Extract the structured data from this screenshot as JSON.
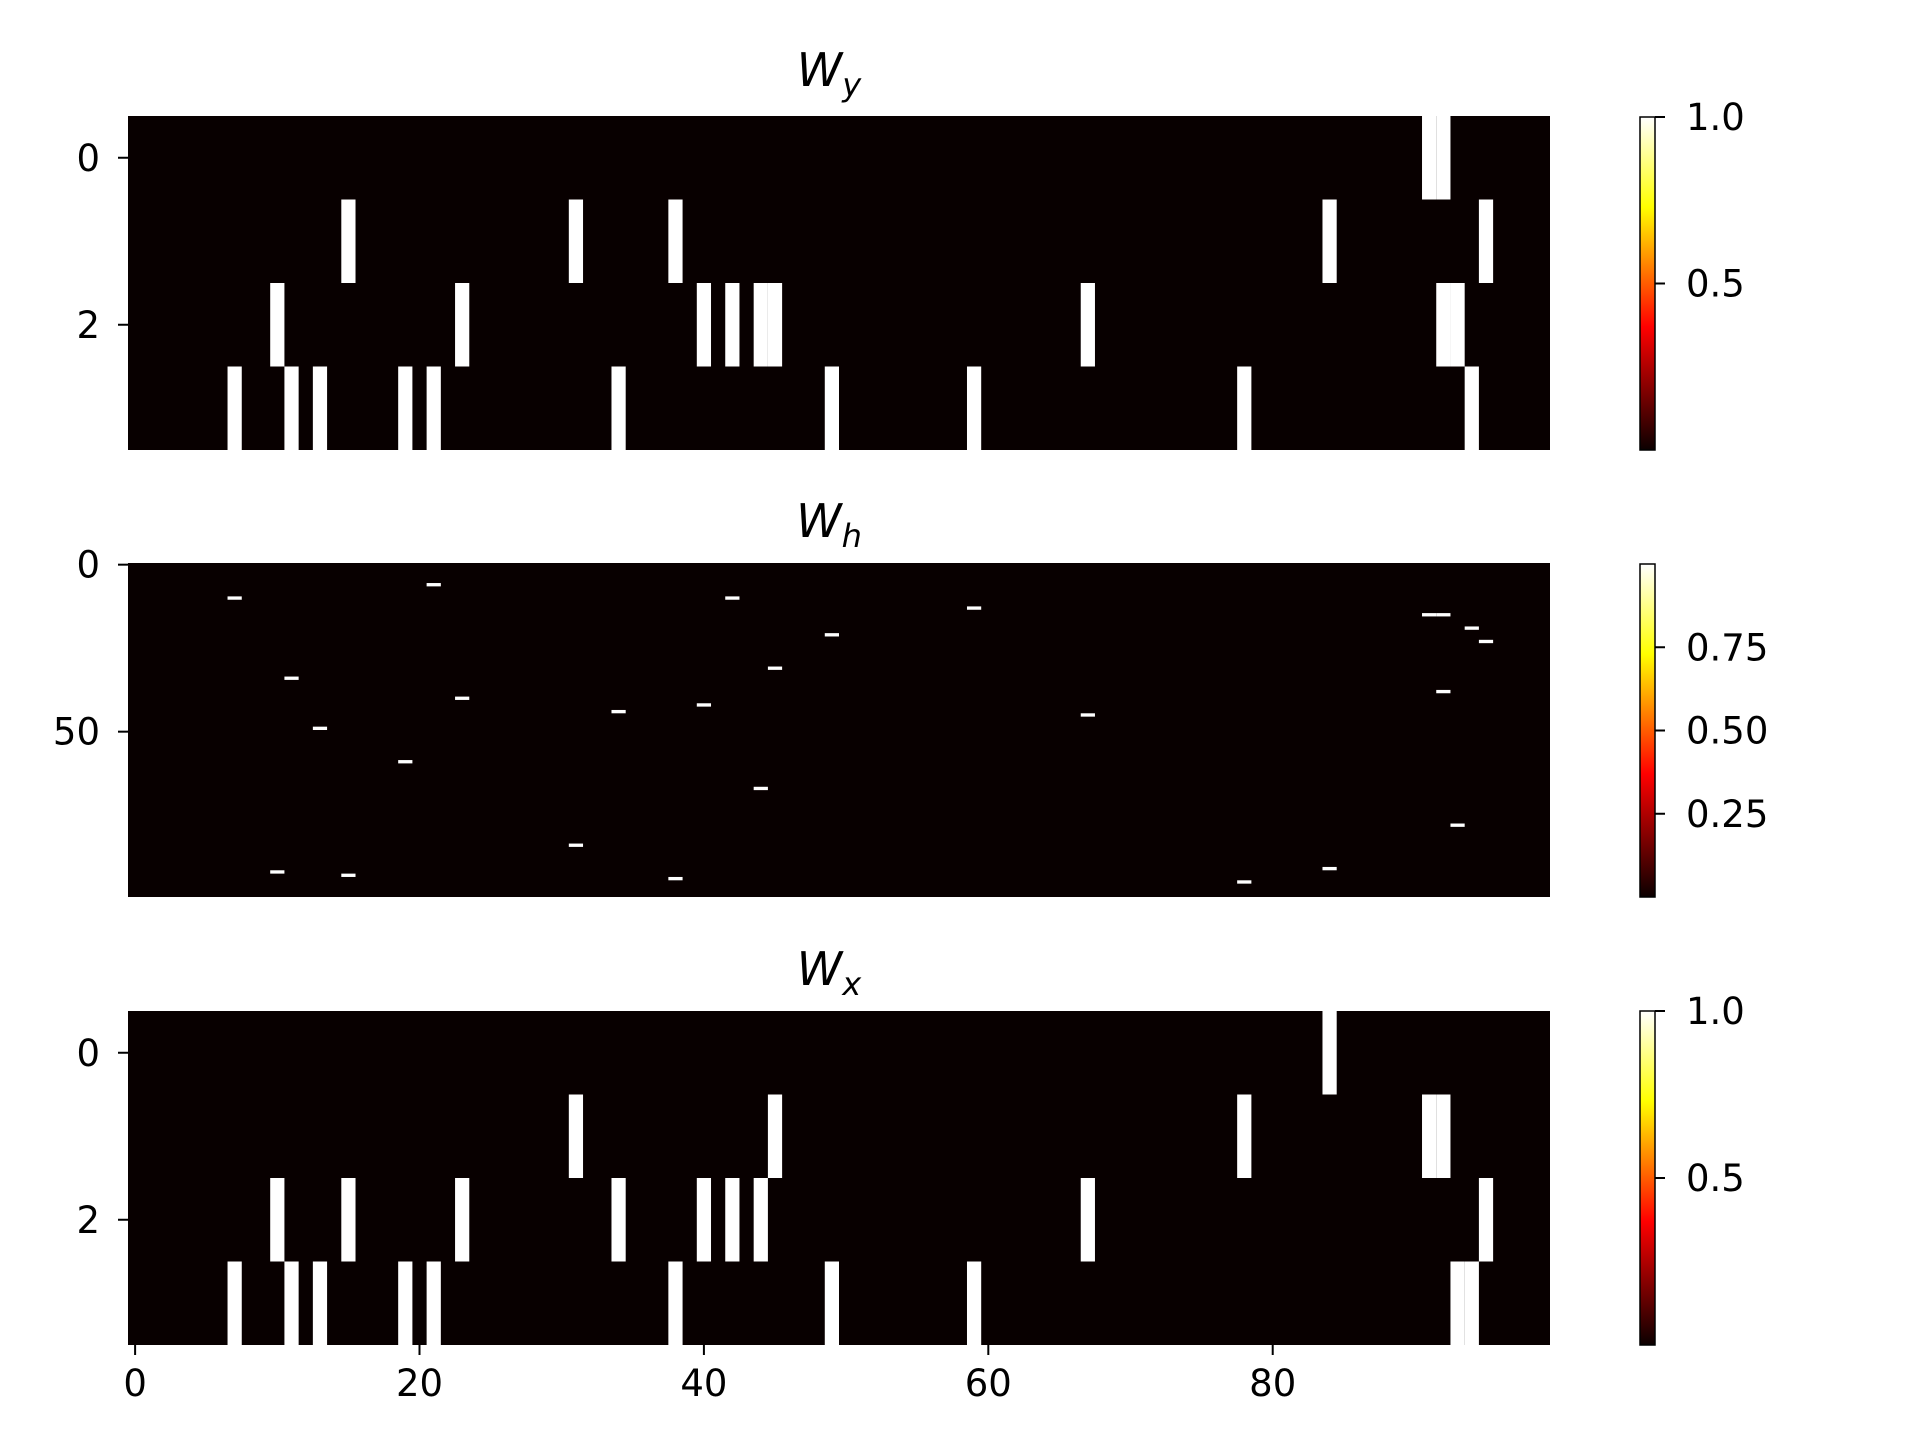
{
  "chart_data": [
    {
      "type": "heatmap",
      "title": "W",
      "title_sub": "y",
      "rows": 4,
      "cols": 100,
      "colormap": "hot",
      "ylim": [
        3.5,
        -0.5
      ],
      "xlim": [
        -0.5,
        99.5
      ],
      "yticks": [
        0,
        2
      ],
      "xticks": [],
      "colorbar_ticks": [
        "0.5",
        "1.0"
      ],
      "colorbar_range": [
        0.0,
        1.0
      ],
      "nonzero": [
        {
          "row": 0,
          "col": 91,
          "value": 1.0
        },
        {
          "row": 0,
          "col": 92,
          "value": 1.0
        },
        {
          "row": 1,
          "col": 15,
          "value": 1.0
        },
        {
          "row": 1,
          "col": 31,
          "value": 1.0
        },
        {
          "row": 1,
          "col": 38,
          "value": 1.0
        },
        {
          "row": 1,
          "col": 84,
          "value": 1.0
        },
        {
          "row": 1,
          "col": 95,
          "value": 1.0
        },
        {
          "row": 2,
          "col": 10,
          "value": 1.0
        },
        {
          "row": 2,
          "col": 23,
          "value": 1.0
        },
        {
          "row": 2,
          "col": 40,
          "value": 1.0
        },
        {
          "row": 2,
          "col": 42,
          "value": 1.0
        },
        {
          "row": 2,
          "col": 44,
          "value": 1.0
        },
        {
          "row": 2,
          "col": 45,
          "value": 1.0
        },
        {
          "row": 2,
          "col": 67,
          "value": 1.0
        },
        {
          "row": 2,
          "col": 92,
          "value": 1.0
        },
        {
          "row": 2,
          "col": 93,
          "value": 1.0
        },
        {
          "row": 3,
          "col": 7,
          "value": 1.0
        },
        {
          "row": 3,
          "col": 11,
          "value": 1.0
        },
        {
          "row": 3,
          "col": 13,
          "value": 1.0
        },
        {
          "row": 3,
          "col": 19,
          "value": 1.0
        },
        {
          "row": 3,
          "col": 21,
          "value": 1.0
        },
        {
          "row": 3,
          "col": 34,
          "value": 1.0
        },
        {
          "row": 3,
          "col": 49,
          "value": 1.0
        },
        {
          "row": 3,
          "col": 59,
          "value": 1.0
        },
        {
          "row": 3,
          "col": 78,
          "value": 1.0
        },
        {
          "row": 3,
          "col": 94,
          "value": 1.0
        }
      ]
    },
    {
      "type": "heatmap",
      "title": "W",
      "title_sub": "h",
      "rows": 100,
      "cols": 100,
      "colormap": "hot",
      "ylim": [
        99.5,
        -0.5
      ],
      "xlim": [
        -0.5,
        99.5
      ],
      "yticks": [
        0,
        50
      ],
      "xticks": [],
      "colorbar_ticks": [
        "0.25",
        "0.50",
        "0.75"
      ],
      "colorbar_range": [
        0.0,
        1.0
      ],
      "nonzero": [
        {
          "row": 6,
          "col": 21,
          "value": 1.0
        },
        {
          "row": 10,
          "col": 7,
          "value": 1.0
        },
        {
          "row": 10,
          "col": 42,
          "value": 1.0
        },
        {
          "row": 13,
          "col": 59,
          "value": 1.0
        },
        {
          "row": 15,
          "col": 91,
          "value": 1.0
        },
        {
          "row": 15,
          "col": 92,
          "value": 1.0
        },
        {
          "row": 19,
          "col": 94,
          "value": 1.0
        },
        {
          "row": 21,
          "col": 49,
          "value": 1.0
        },
        {
          "row": 23,
          "col": 95,
          "value": 1.0
        },
        {
          "row": 31,
          "col": 45,
          "value": 1.0
        },
        {
          "row": 34,
          "col": 11,
          "value": 1.0
        },
        {
          "row": 38,
          "col": 92,
          "value": 1.0
        },
        {
          "row": 40,
          "col": 23,
          "value": 1.0
        },
        {
          "row": 42,
          "col": 40,
          "value": 1.0
        },
        {
          "row": 44,
          "col": 34,
          "value": 1.0
        },
        {
          "row": 45,
          "col": 67,
          "value": 1.0
        },
        {
          "row": 49,
          "col": 13,
          "value": 1.0
        },
        {
          "row": 59,
          "col": 19,
          "value": 1.0
        },
        {
          "row": 67,
          "col": 44,
          "value": 1.0
        },
        {
          "row": 78,
          "col": 93,
          "value": 1.0
        },
        {
          "row": 84,
          "col": 31,
          "value": 1.0
        },
        {
          "row": 91,
          "col": 84,
          "value": 1.0
        },
        {
          "row": 92,
          "col": 10,
          "value": 1.0
        },
        {
          "row": 93,
          "col": 15,
          "value": 1.0
        },
        {
          "row": 94,
          "col": 38,
          "value": 1.0
        },
        {
          "row": 95,
          "col": 78,
          "value": 1.0
        }
      ]
    },
    {
      "type": "heatmap",
      "title": "W",
      "title_sub": "x",
      "rows": 4,
      "cols": 100,
      "colormap": "hot",
      "ylim": [
        3.5,
        -0.5
      ],
      "xlim": [
        -0.5,
        99.5
      ],
      "yticks": [
        0,
        2
      ],
      "xticks": [
        0,
        20,
        40,
        60,
        80
      ],
      "colorbar_ticks": [
        "0.5",
        "1.0"
      ],
      "colorbar_range": [
        0.0,
        1.0
      ],
      "nonzero": [
        {
          "row": 0,
          "col": 84,
          "value": 1.0
        },
        {
          "row": 1,
          "col": 31,
          "value": 1.0
        },
        {
          "row": 1,
          "col": 45,
          "value": 1.0
        },
        {
          "row": 1,
          "col": 78,
          "value": 1.0
        },
        {
          "row": 1,
          "col": 91,
          "value": 1.0
        },
        {
          "row": 1,
          "col": 92,
          "value": 1.0
        },
        {
          "row": 2,
          "col": 10,
          "value": 1.0
        },
        {
          "row": 2,
          "col": 15,
          "value": 1.0
        },
        {
          "row": 2,
          "col": 23,
          "value": 1.0
        },
        {
          "row": 2,
          "col": 34,
          "value": 1.0
        },
        {
          "row": 2,
          "col": 40,
          "value": 1.0
        },
        {
          "row": 2,
          "col": 42,
          "value": 1.0
        },
        {
          "row": 2,
          "col": 44,
          "value": 1.0
        },
        {
          "row": 2,
          "col": 67,
          "value": 1.0
        },
        {
          "row": 2,
          "col": 95,
          "value": 1.0
        },
        {
          "row": 3,
          "col": 7,
          "value": 1.0
        },
        {
          "row": 3,
          "col": 11,
          "value": 1.0
        },
        {
          "row": 3,
          "col": 13,
          "value": 1.0
        },
        {
          "row": 3,
          "col": 19,
          "value": 1.0
        },
        {
          "row": 3,
          "col": 21,
          "value": 1.0
        },
        {
          "row": 3,
          "col": 38,
          "value": 1.0
        },
        {
          "row": 3,
          "col": 49,
          "value": 1.0
        },
        {
          "row": 3,
          "col": 59,
          "value": 1.0
        },
        {
          "row": 3,
          "col": 93,
          "value": 1.0
        },
        {
          "row": 3,
          "col": 94,
          "value": 1.0
        }
      ]
    }
  ],
  "colors": {
    "background": "#080000",
    "cell_on": "#ffffff",
    "colormap_stops": [
      "#0b0000",
      "#ff0000",
      "#ffff00",
      "#ffffff"
    ]
  }
}
